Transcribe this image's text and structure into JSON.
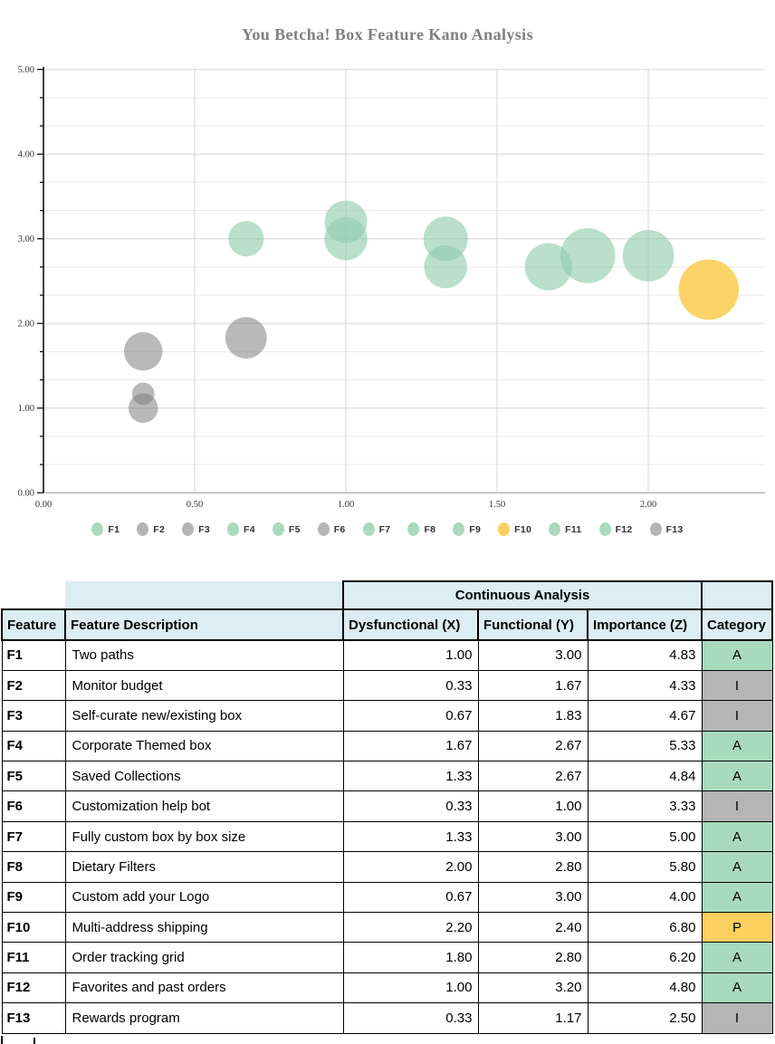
{
  "title": "You Betcha! Box Feature Kano Analysis",
  "chart_data": {
    "type": "bubble",
    "title": "You Betcha! Box Feature Kano Analysis",
    "xlabel": "",
    "ylabel": "",
    "grid": true,
    "legend_position": "bottom",
    "x_axis": {
      "min": 0,
      "max": 2.4,
      "tick_step": 0.5,
      "tick_labels": [
        "0.00",
        "0.50",
        "1.00",
        "1.50",
        "2.00"
      ]
    },
    "y_axis": {
      "min": 0,
      "max": 5,
      "tick_step": 1,
      "minor_step": 0.333,
      "tick_labels": [
        "0.00",
        "1.00",
        "2.00",
        "3.00",
        "4.00",
        "5.00"
      ]
    },
    "series": [
      {
        "name": "F1",
        "x": 1.0,
        "y": 3.0,
        "z": 4.83,
        "category": "A"
      },
      {
        "name": "F2",
        "x": 0.33,
        "y": 1.67,
        "z": 4.33,
        "category": "I"
      },
      {
        "name": "F3",
        "x": 0.67,
        "y": 1.83,
        "z": 4.67,
        "category": "I"
      },
      {
        "name": "F4",
        "x": 1.67,
        "y": 2.67,
        "z": 5.33,
        "category": "A"
      },
      {
        "name": "F5",
        "x": 1.33,
        "y": 2.67,
        "z": 4.84,
        "category": "A"
      },
      {
        "name": "F6",
        "x": 0.33,
        "y": 1.0,
        "z": 3.33,
        "category": "I"
      },
      {
        "name": "F7",
        "x": 1.33,
        "y": 3.0,
        "z": 5.0,
        "category": "A"
      },
      {
        "name": "F8",
        "x": 2.0,
        "y": 2.8,
        "z": 5.8,
        "category": "A"
      },
      {
        "name": "F9",
        "x": 0.67,
        "y": 3.0,
        "z": 4.0,
        "category": "A"
      },
      {
        "name": "F10",
        "x": 2.2,
        "y": 2.4,
        "z": 6.8,
        "category": "P"
      },
      {
        "name": "F11",
        "x": 1.8,
        "y": 2.8,
        "z": 6.2,
        "category": "A"
      },
      {
        "name": "F12",
        "x": 1.0,
        "y": 3.2,
        "z": 4.8,
        "category": "A"
      },
      {
        "name": "F13",
        "x": 0.33,
        "y": 1.17,
        "z": 2.5,
        "category": "I"
      }
    ],
    "category_colors": {
      "A": "#a9dabd",
      "I": "#b5b5b5",
      "P": "#fbd05f"
    },
    "bubble_colors": {
      "A": "rgba(144,203,172,0.62)",
      "I": "rgba(128,128,128,0.55)",
      "P": "rgba(250,198,52,0.75)"
    }
  },
  "table": {
    "group_header": "Continuous Analysis",
    "columns": [
      "Feature",
      "Feature Description",
      "Dysfunctional (X)",
      "Functional (Y)",
      "Importance (Z)",
      "Category"
    ],
    "rows": [
      {
        "feature": "F1",
        "description": "Two paths",
        "x": "1.00",
        "y": "3.00",
        "z": "4.83",
        "category": "A"
      },
      {
        "feature": "F2",
        "description": "Monitor budget",
        "x": "0.33",
        "y": "1.67",
        "z": "4.33",
        "category": "I"
      },
      {
        "feature": "F3",
        "description": "Self-curate new/existing box",
        "x": "0.67",
        "y": "1.83",
        "z": "4.67",
        "category": "I"
      },
      {
        "feature": "F4",
        "description": "Corporate Themed box",
        "x": "1.67",
        "y": "2.67",
        "z": "5.33",
        "category": "A"
      },
      {
        "feature": "F5",
        "description": "Saved Collections",
        "x": "1.33",
        "y": "2.67",
        "z": "4.84",
        "category": "A"
      },
      {
        "feature": "F6",
        "description": "Customization help bot",
        "x": "0.33",
        "y": "1.00",
        "z": "3.33",
        "category": "I"
      },
      {
        "feature": "F7",
        "description": "Fully custom box by box size",
        "x": "1.33",
        "y": "3.00",
        "z": "5.00",
        "category": "A"
      },
      {
        "feature": "F8",
        "description": "Dietary Filters",
        "x": "2.00",
        "y": "2.80",
        "z": "5.80",
        "category": "A"
      },
      {
        "feature": "F9",
        "description": "Custom add your Logo",
        "x": "0.67",
        "y": "3.00",
        "z": "4.00",
        "category": "A"
      },
      {
        "feature": "F10",
        "description": "Multi-address shipping",
        "x": "2.20",
        "y": "2.40",
        "z": "6.80",
        "category": "P"
      },
      {
        "feature": "F11",
        "description": "Order tracking grid",
        "x": "1.80",
        "y": "2.80",
        "z": "6.20",
        "category": "A"
      },
      {
        "feature": "F12",
        "description": "Favorites and past orders",
        "x": "1.00",
        "y": "3.20",
        "z": "4.80",
        "category": "A"
      },
      {
        "feature": "F13",
        "description": "Rewards program",
        "x": "0.33",
        "y": "1.17",
        "z": "2.50",
        "category": "I"
      }
    ],
    "category_cell_colors": {
      "A": "#a9dabd",
      "I": "#b5b5b5",
      "P": "#fbd05f"
    }
  },
  "colors": {
    "header_bg": "#dcedf3",
    "title_text": "#7f7f7f",
    "table_border": "#000000"
  }
}
